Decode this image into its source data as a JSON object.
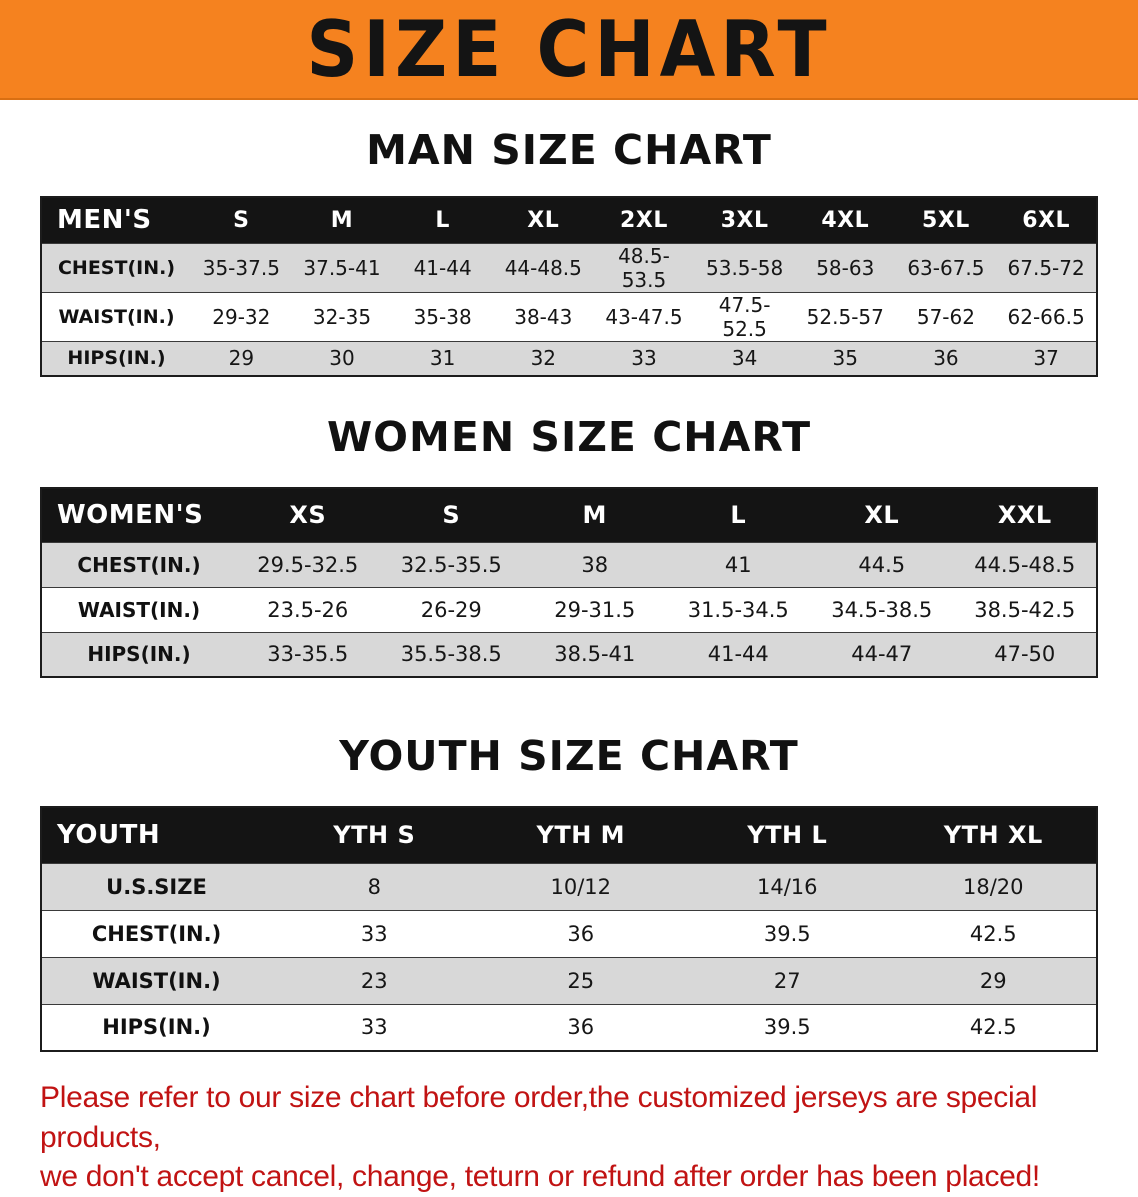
{
  "banner": {
    "title": "SIZE CHART",
    "bg_color": "#F5821F",
    "text_color": "#141414"
  },
  "sections": {
    "men": {
      "heading": "MAN SIZE CHART",
      "table": {
        "header": [
          "MEN'S",
          "S",
          "M",
          "L",
          "XL",
          "2XL",
          "3XL",
          "4XL",
          "5XL",
          "6XL"
        ],
        "rows": [
          [
            "CHEST(IN.)",
            "35-37.5",
            "37.5-41",
            "41-44",
            "44-48.5",
            "48.5-53.5",
            "53.5-58",
            "58-63",
            "63-67.5",
            "67.5-72"
          ],
          [
            "WAIST(IN.)",
            "29-32",
            "32-35",
            "35-38",
            "38-43",
            "43-47.5",
            "47.5-52.5",
            "52.5-57",
            "57-62",
            "62-66.5"
          ],
          [
            "HIPS(IN.)",
            "29",
            "30",
            "31",
            "32",
            "33",
            "34",
            "35",
            "36",
            "37"
          ]
        ]
      }
    },
    "women": {
      "heading": "WOMEN SIZE CHART",
      "table": {
        "header": [
          "WOMEN'S",
          "XS",
          "S",
          "M",
          "L",
          "XL",
          "XXL"
        ],
        "rows": [
          [
            "CHEST(IN.)",
            "29.5-32.5",
            "32.5-35.5",
            "38",
            "41",
            "44.5",
            "44.5-48.5"
          ],
          [
            "WAIST(IN.)",
            "23.5-26",
            "26-29",
            "29-31.5",
            "31.5-34.5",
            "34.5-38.5",
            "38.5-42.5"
          ],
          [
            "HIPS(IN.)",
            "33-35.5",
            "35.5-38.5",
            "38.5-41",
            "41-44",
            "44-47",
            "47-50"
          ]
        ]
      }
    },
    "youth": {
      "heading": "YOUTH SIZE CHART",
      "table": {
        "header": [
          "YOUTH",
          "YTH S",
          "YTH M",
          "YTH L",
          "YTH XL"
        ],
        "rows": [
          [
            "U.S.SIZE",
            "8",
            "10/12",
            "14/16",
            "18/20"
          ],
          [
            "CHEST(IN.)",
            "33",
            "36",
            "39.5",
            "42.5"
          ],
          [
            "WAIST(IN.)",
            "23",
            "25",
            "27",
            "29"
          ],
          [
            "HIPS(IN.)",
            "33",
            "36",
            "39.5",
            "42.5"
          ]
        ]
      }
    }
  },
  "footer": {
    "line1": "Please refer to our size chart before order,the customized jerseys are special products,",
    "line2": "we don't accept cancel, change, teturn or refund after order has been placed!",
    "text_color": "#C11313"
  }
}
